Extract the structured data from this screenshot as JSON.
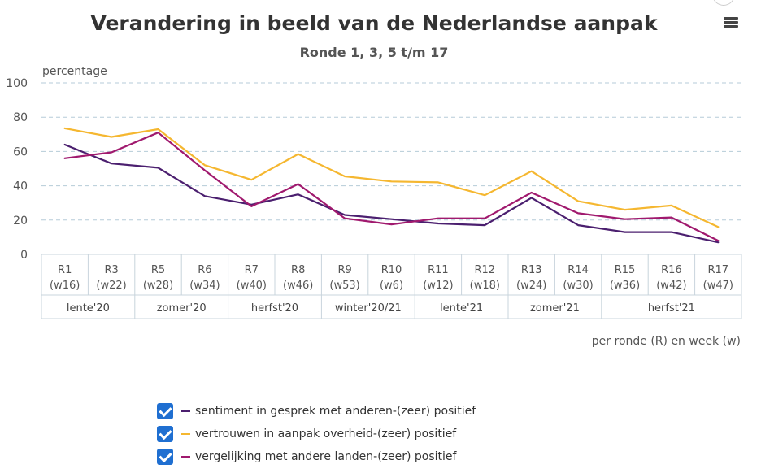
{
  "chart_data": {
    "type": "line",
    "title": "Verandering in beeld van de Nederlandse aanpak",
    "subtitle": "Ronde 1, 3, 5 t/m 17",
    "ylabel": "percentage",
    "xlabel": "per ronde (R) en week (w)",
    "ylim": [
      0,
      100
    ],
    "yticks": [
      0,
      20,
      40,
      60,
      80,
      100
    ],
    "grid": true,
    "legend_placement": "bottom",
    "categories": [
      {
        "round": "R1",
        "week": "(w16)"
      },
      {
        "round": "R3",
        "week": "(w22)"
      },
      {
        "round": "R5",
        "week": "(w28)"
      },
      {
        "round": "R6",
        "week": "(w34)"
      },
      {
        "round": "R7",
        "week": "(w40)"
      },
      {
        "round": "R8",
        "week": "(w46)"
      },
      {
        "round": "R9",
        "week": "(w53)"
      },
      {
        "round": "R10",
        "week": "(w6)"
      },
      {
        "round": "R11",
        "week": "(w12)"
      },
      {
        "round": "R12",
        "week": "(w18)"
      },
      {
        "round": "R13",
        "week": "(w24)"
      },
      {
        "round": "R14",
        "week": "(w30)"
      },
      {
        "round": "R15",
        "week": "(w36)"
      },
      {
        "round": "R16",
        "week": "(w42)"
      },
      {
        "round": "R17",
        "week": "(w47)"
      }
    ],
    "season_groups": [
      {
        "label": "lente'20",
        "span": 2
      },
      {
        "label": "zomer'20",
        "span": 2
      },
      {
        "label": "herfst'20",
        "span": 2
      },
      {
        "label": "winter'20/21",
        "span": 2
      },
      {
        "label": "lente'21",
        "span": 2
      },
      {
        "label": "zomer'21",
        "span": 2
      },
      {
        "label": "herfst'21",
        "span": 3
      }
    ],
    "series": [
      {
        "name": "sentiment in gesprek met anderen-(zeer) positief",
        "color": "#4b1f6f",
        "values": [
          64,
          53,
          50.5,
          34,
          29,
          35,
          23,
          20.5,
          18,
          17,
          33,
          17,
          13,
          13,
          7
        ]
      },
      {
        "name": "vertrouwen in aanpak overheid-(zeer) positief",
        "color": "#f5b730",
        "values": [
          73.5,
          68.5,
          73,
          52,
          43.5,
          58.5,
          45.5,
          42.5,
          42,
          34.5,
          48.5,
          31,
          26,
          28.5,
          16
        ]
      },
      {
        "name": "vergelijking met andere landen-(zeer) positief",
        "color": "#a0196e",
        "values": [
          56,
          59.5,
          71,
          49,
          28,
          41,
          21,
          17.5,
          21,
          21,
          36,
          24,
          20.5,
          21.5,
          8
        ]
      }
    ]
  },
  "ui": {
    "menu_icon": "hamburger-menu-icon",
    "checkbox_color": "#1f6fd1",
    "checked": [
      true,
      true,
      true
    ]
  }
}
